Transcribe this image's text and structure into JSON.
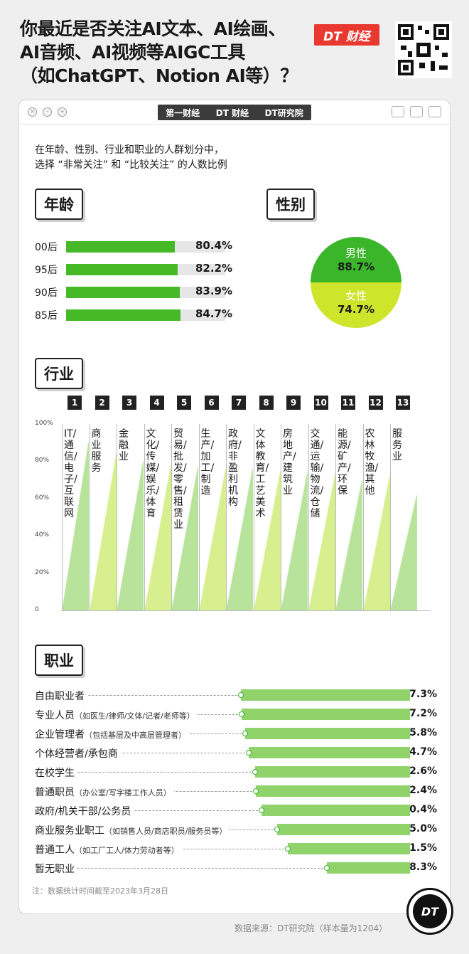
{
  "title_lines": [
    "你最近是否关注AI文本、AI绘画、",
    "AI音频、AI视频等AIGC工具",
    "（如ChatGPT、Notion AI等）？"
  ],
  "brand": "DT 财经",
  "partners": [
    "第一财经",
    "DT 财经",
    "DT研究院"
  ],
  "subtitle_lines": [
    "在年龄、性别、行业和职业的人群划分中，",
    "选择 “非常关注” 和 “比较关注” 的人数比例"
  ],
  "sections": {
    "age": "年龄",
    "gender": "性别",
    "industry": "行业",
    "occupation": "职业"
  },
  "colors": {
    "green": "#46b928",
    "light_green": "#8fd36a",
    "yellow_green": "#cee52c",
    "red": "#e8382f"
  },
  "chart_data": [
    {
      "type": "bar",
      "section": "年龄",
      "categories": [
        "00后",
        "95后",
        "90后",
        "85后"
      ],
      "values": [
        80.4,
        82.2,
        83.9,
        84.7
      ],
      "labels": [
        "80.4%",
        "82.2%",
        "83.9%",
        "84.7%"
      ],
      "ylim": [
        0,
        100
      ]
    },
    {
      "type": "pie",
      "section": "性别",
      "categories": [
        "男性",
        "女性"
      ],
      "values": [
        88.7,
        74.7
      ],
      "labels": [
        "88.7%",
        "74.7%"
      ]
    },
    {
      "type": "bar",
      "section": "行业",
      "numbers": [
        "1",
        "2",
        "3",
        "4",
        "5",
        "6",
        "7",
        "8",
        "9",
        "10",
        "11",
        "12",
        "13"
      ],
      "categories": [
        "IT/通信/电子/互联网",
        "商业服务",
        "金融业",
        "文化/传媒/娱乐/体育",
        "贸易/批发/零售/租赁业",
        "生产/加工/制造",
        "政府/非盈利机构",
        "文体教育/工艺美术",
        "房地产/建筑业",
        "交通/运输/物流/仓储",
        "能源/矿产/环保",
        "农林牧渔/其他",
        "服务业"
      ],
      "values": [
        90,
        84,
        80,
        78,
        77,
        76,
        76,
        75,
        74,
        73,
        70,
        72,
        62
      ],
      "ytick_labels": [
        "100%",
        "80%",
        "60%",
        "40%",
        "20%",
        "0"
      ],
      "ylim": [
        0,
        100
      ]
    },
    {
      "type": "bar",
      "section": "职业",
      "categories": [
        {
          "name": "自由职业者",
          "note": ""
        },
        {
          "name": "专业人员",
          "note": "（如医生/律师/文体/记者/老师等）"
        },
        {
          "name": "企业管理者",
          "note": "（包括基层及中高层管理者）"
        },
        {
          "name": "个体经营者/承包商",
          "note": ""
        },
        {
          "name": "在校学生",
          "note": ""
        },
        {
          "name": "普通职员",
          "note": "（办公室/写字楼工作人员）"
        },
        {
          "name": "政府/机关干部/公务员",
          "note": ""
        },
        {
          "name": "商业服务业职工",
          "note": "（如销售人员/商店职员/服务员等）"
        },
        {
          "name": "普通工人",
          "note": "（如工厂工人/体力劳动者等）"
        },
        {
          "name": "暂无职业",
          "note": ""
        }
      ],
      "values": [
        87.3,
        87.2,
        85.8,
        84.7,
        82.6,
        82.4,
        80.4,
        75.0,
        71.5,
        58.3
      ],
      "labels": [
        "87.3%",
        "87.2%",
        "85.8%",
        "84.7%",
        "82.6%",
        "82.4%",
        "80.4%",
        "75.0%",
        "71.5%",
        "58.3%"
      ],
      "ylim": [
        0,
        100
      ]
    }
  ],
  "note": "注：数据统计时间截至2023年3月28日",
  "source": "数据来源：DT研究院（样本量为1204）",
  "logo": "DT"
}
